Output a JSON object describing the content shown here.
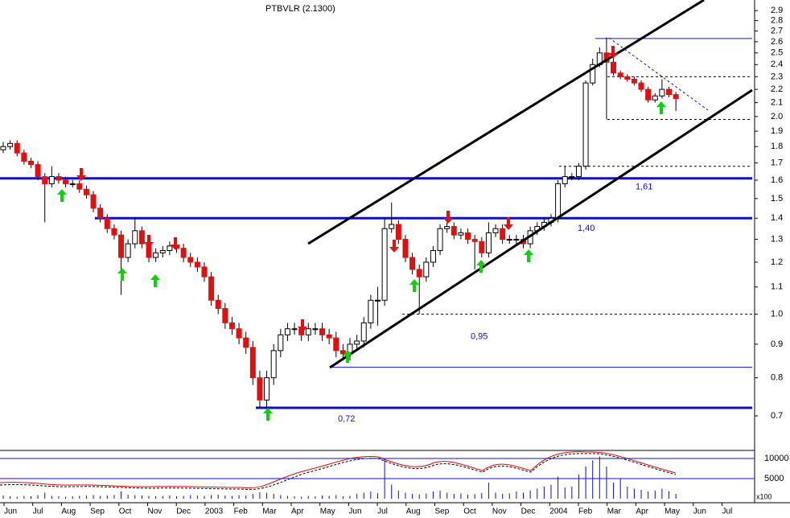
{
  "chart_data": {
    "type": "candlestick",
    "title": "PTBVLR (2.1300)",
    "ylog": true,
    "ylim": [
      0.62,
      3.01
    ],
    "yticks": [
      0.7,
      0.8,
      0.9,
      {
        "value": 1,
        "label": "1.0"
      },
      1.1,
      1.2,
      1.3,
      1.4,
      1.5,
      1.6,
      1.7,
      1.8,
      1.9,
      {
        "value": 2,
        "label": "2.0"
      },
      2.1,
      2.2,
      2.3,
      2.4,
      2.5,
      2.6,
      2.7,
      2.8,
      2.9
    ],
    "x_labels": [
      "Jun",
      "Jul",
      "Aug",
      "Sep",
      "Oct",
      "Nov",
      "Dec",
      "2003",
      "Feb",
      "Mar",
      "Apr",
      "May",
      "Jun",
      "Jul",
      "Aug",
      "Sep",
      "Oct",
      "Nov",
      "Dec",
      "2004",
      "Feb",
      "Mar",
      "Apr",
      "May",
      "Jun",
      "Jul"
    ],
    "up_color": "#ffffff",
    "down_color": "#e01010",
    "ohlc": [
      [
        1.78,
        1.83,
        1.76,
        1.8
      ],
      [
        1.8,
        1.84,
        1.78,
        1.82
      ],
      [
        1.82,
        1.84,
        1.74,
        1.76
      ],
      [
        1.76,
        1.78,
        1.69,
        1.71
      ],
      [
        1.71,
        1.73,
        1.67,
        1.69
      ],
      [
        1.69,
        1.71,
        1.6,
        1.62
      ],
      [
        1.62,
        1.64,
        1.38,
        1.58
      ],
      [
        1.58,
        1.68,
        1.56,
        1.62
      ],
      [
        1.62,
        1.64,
        1.58,
        1.6
      ],
      [
        1.6,
        1.62,
        1.56,
        1.58
      ],
      [
        1.58,
        1.6,
        1.56,
        1.58
      ],
      [
        1.58,
        1.6,
        1.53,
        1.55
      ],
      [
        1.55,
        1.57,
        1.5,
        1.52
      ],
      [
        1.52,
        1.54,
        1.43,
        1.45
      ],
      [
        1.45,
        1.47,
        1.38,
        1.4
      ],
      [
        1.4,
        1.42,
        1.33,
        1.35
      ],
      [
        1.35,
        1.37,
        1.3,
        1.32
      ],
      [
        1.32,
        1.34,
        1.07,
        1.22
      ],
      [
        1.22,
        1.3,
        1.2,
        1.28
      ],
      [
        1.28,
        1.4,
        1.26,
        1.34
      ],
      [
        1.34,
        1.36,
        1.26,
        1.28
      ],
      [
        1.28,
        1.3,
        1.2,
        1.22
      ],
      [
        1.22,
        1.26,
        1.2,
        1.24
      ],
      [
        1.24,
        1.27,
        1.22,
        1.25
      ],
      [
        1.25,
        1.29,
        1.23,
        1.27
      ],
      [
        1.27,
        1.29,
        1.24,
        1.26
      ],
      [
        1.26,
        1.28,
        1.2,
        1.22
      ],
      [
        1.22,
        1.24,
        1.18,
        1.2
      ],
      [
        1.2,
        1.22,
        1.16,
        1.18
      ],
      [
        1.18,
        1.2,
        1.12,
        1.14
      ],
      [
        1.14,
        1.16,
        1.03,
        1.05
      ],
      [
        1.05,
        1.07,
        1.0,
        1.02
      ],
      [
        1.02,
        1.04,
        0.95,
        0.97
      ],
      [
        0.97,
        0.99,
        0.93,
        0.95
      ],
      [
        0.95,
        0.97,
        0.9,
        0.92
      ],
      [
        0.92,
        0.94,
        0.87,
        0.89
      ],
      [
        0.89,
        0.91,
        0.78,
        0.8
      ],
      [
        0.8,
        0.82,
        0.72,
        0.74
      ],
      [
        0.74,
        0.82,
        0.72,
        0.8
      ],
      [
        0.8,
        0.9,
        0.78,
        0.88
      ],
      [
        0.88,
        0.95,
        0.86,
        0.93
      ],
      [
        0.93,
        0.97,
        0.91,
        0.95
      ],
      [
        0.95,
        0.97,
        0.93,
        0.95
      ],
      [
        0.95,
        0.97,
        0.91,
        0.93
      ],
      [
        0.93,
        0.97,
        0.91,
        0.95
      ],
      [
        0.95,
        0.97,
        0.93,
        0.95
      ],
      [
        0.95,
        0.97,
        0.91,
        0.93
      ],
      [
        0.93,
        0.95,
        0.9,
        0.92
      ],
      [
        0.92,
        0.94,
        0.86,
        0.88
      ],
      [
        0.88,
        0.9,
        0.85,
        0.87
      ],
      [
        0.87,
        0.92,
        0.85,
        0.9
      ],
      [
        0.9,
        0.93,
        0.88,
        0.91
      ],
      [
        0.91,
        0.99,
        0.89,
        0.97
      ],
      [
        0.97,
        1.07,
        0.95,
        1.05
      ],
      [
        1.05,
        1.1,
        0.96,
        1.05
      ],
      [
        1.05,
        1.4,
        1.03,
        1.35
      ],
      [
        1.35,
        1.48,
        1.33,
        1.37
      ],
      [
        1.37,
        1.39,
        1.28,
        1.3
      ],
      [
        1.3,
        1.32,
        1.2,
        1.22
      ],
      [
        1.22,
        1.24,
        1.15,
        1.17
      ],
      [
        1.17,
        1.19,
        1.0,
        1.14
      ],
      [
        1.14,
        1.22,
        1.12,
        1.2
      ],
      [
        1.2,
        1.27,
        1.18,
        1.25
      ],
      [
        1.25,
        1.37,
        1.23,
        1.35
      ],
      [
        1.35,
        1.38,
        1.33,
        1.36
      ],
      [
        1.36,
        1.38,
        1.3,
        1.32
      ],
      [
        1.32,
        1.35,
        1.3,
        1.33
      ],
      [
        1.33,
        1.35,
        1.28,
        1.3
      ],
      [
        1.3,
        1.32,
        1.17,
        1.29
      ],
      [
        1.29,
        1.31,
        1.22,
        1.24
      ],
      [
        1.24,
        1.38,
        1.22,
        1.33
      ],
      [
        1.33,
        1.37,
        1.31,
        1.35
      ],
      [
        1.35,
        1.37,
        1.28,
        1.3
      ],
      [
        1.3,
        1.32,
        1.28,
        1.3
      ],
      [
        1.3,
        1.32,
        1.28,
        1.3
      ],
      [
        1.3,
        1.32,
        1.26,
        1.28
      ],
      [
        1.28,
        1.36,
        1.26,
        1.34
      ],
      [
        1.34,
        1.38,
        1.32,
        1.36
      ],
      [
        1.36,
        1.4,
        1.34,
        1.38
      ],
      [
        1.38,
        1.42,
        1.36,
        1.4
      ],
      [
        1.4,
        1.6,
        1.38,
        1.58
      ],
      [
        1.58,
        1.68,
        1.56,
        1.62
      ],
      [
        1.62,
        1.64,
        1.6,
        1.62
      ],
      [
        1.62,
        1.7,
        1.6,
        1.68
      ],
      [
        1.68,
        2.27,
        1.66,
        2.25
      ],
      [
        2.25,
        2.45,
        2.23,
        2.4
      ],
      [
        2.4,
        2.55,
        2.38,
        2.5
      ],
      [
        2.5,
        2.64,
        1.98,
        2.42
      ],
      [
        2.42,
        2.48,
        2.31,
        2.33
      ],
      [
        2.33,
        2.35,
        2.28,
        2.3
      ],
      [
        2.3,
        2.32,
        2.26,
        2.28
      ],
      [
        2.28,
        2.3,
        2.23,
        2.25
      ],
      [
        2.25,
        2.27,
        2.18,
        2.2
      ],
      [
        2.2,
        2.22,
        2.1,
        2.12
      ],
      [
        2.12,
        2.17,
        2.1,
        2.15
      ],
      [
        2.15,
        2.28,
        2.13,
        2.2
      ],
      [
        2.2,
        2.22,
        2.14,
        2.16
      ],
      [
        2.16,
        2.18,
        2.04,
        2.13
      ]
    ],
    "levels": [
      {
        "value": 1.61,
        "label": "1,61"
      },
      {
        "value": 1.4,
        "label": "1,40"
      },
      {
        "value": 0.95,
        "label": "0,95"
      },
      {
        "value": 0.72,
        "label": "0,72"
      }
    ],
    "ref_lines": [
      2.63,
      2.3,
      1.98,
      1.68,
      1.0,
      0.83
    ],
    "volume": {
      "ylim": [
        0,
        12000
      ],
      "yticks": [
        5000,
        10000
      ],
      "unit": "x100",
      "color": "#1010c0",
      "values": [
        800,
        600,
        500,
        700,
        600,
        900,
        1500,
        700,
        600,
        500,
        600,
        700,
        800,
        900,
        700,
        800,
        900,
        1800,
        1000,
        900,
        800,
        700,
        600,
        700,
        800,
        600,
        700,
        900,
        800,
        700,
        900,
        1000,
        800,
        700,
        900,
        800,
        1200,
        1600,
        1500,
        1200,
        900,
        700,
        600,
        500,
        700,
        600,
        800,
        700,
        900,
        600,
        700,
        1200,
        1500,
        1800,
        1400,
        10000,
        3500,
        2000,
        1500,
        1200,
        1100,
        1300,
        1800,
        2000,
        1500,
        1200,
        1300,
        1000,
        1100,
        1400,
        4000,
        1500,
        1200,
        1300,
        1800,
        1500,
        2000,
        2500,
        3000,
        3500,
        5500,
        2800,
        3000,
        6000,
        8000,
        9500,
        10500,
        8000,
        4000,
        5000,
        3000,
        2500,
        2200,
        1800,
        2000,
        2500,
        1800,
        1200
      ]
    }
  }
}
